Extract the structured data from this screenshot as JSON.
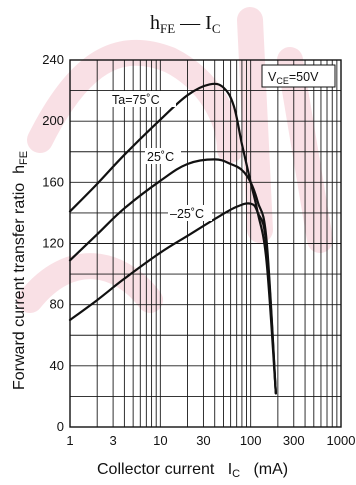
{
  "chart_data": {
    "type": "line",
    "title": {
      "main": "h",
      "main_sub": "FE",
      "sep": " — ",
      "x": "I",
      "x_sub": "C"
    },
    "xlabel": {
      "text": "Collector current",
      "symbol": "I",
      "symbol_sub": "C",
      "unit": "(mA)"
    },
    "ylabel": {
      "text": "Forward current transfer ratio",
      "symbol": "h",
      "symbol_sub": "FE"
    },
    "x_scale": "log",
    "xlim": [
      1,
      1000
    ],
    "ylim": [
      0,
      240
    ],
    "x_ticks": [
      {
        "value": 1,
        "label": "1"
      },
      {
        "value": 3,
        "label": "3"
      },
      {
        "value": 10,
        "label": "10"
      },
      {
        "value": 30,
        "label": "30"
      },
      {
        "value": 100,
        "label": "100"
      },
      {
        "value": 300,
        "label": "300"
      },
      {
        "value": 1000,
        "label": "1000"
      }
    ],
    "y_ticks": [
      {
        "value": 0,
        "label": "0"
      },
      {
        "value": 40,
        "label": "40"
      },
      {
        "value": 80,
        "label": "80"
      },
      {
        "value": 120,
        "label": "120"
      },
      {
        "value": 160,
        "label": "160"
      },
      {
        "value": 200,
        "label": "200"
      },
      {
        "value": 240,
        "label": "240"
      }
    ],
    "grid": true,
    "condition": {
      "prefix": "V",
      "sub": "CE",
      "suffix": "=50V"
    },
    "series": [
      {
        "name": "Ta=75˚C",
        "x": [
          1,
          2,
          4,
          10,
          20,
          35,
          50,
          65,
          80,
          100,
          120,
          150,
          190
        ],
        "y": [
          141,
          159,
          178,
          201,
          217,
          224,
          222,
          210,
          185,
          160,
          140,
          108,
          22
        ]
      },
      {
        "name": "25˚C",
        "x": [
          1,
          2,
          4,
          10,
          20,
          40,
          60,
          80,
          100,
          120,
          150,
          190
        ],
        "y": [
          109,
          126,
          143,
          161,
          172,
          175,
          172,
          168,
          160,
          147,
          122,
          22
        ]
      },
      {
        "name": "–25˚C",
        "x": [
          1,
          2,
          4,
          10,
          20,
          40,
          70,
          100,
          120,
          150,
          190
        ],
        "y": [
          70,
          83,
          97,
          114,
          125,
          136,
          144,
          146,
          140,
          118,
          22
        ]
      }
    ]
  }
}
